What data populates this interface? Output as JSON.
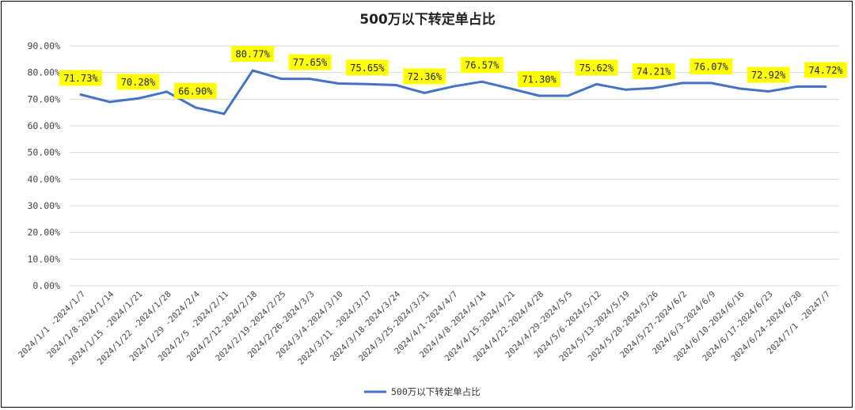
{
  "chart_data": {
    "type": "line",
    "title": "500万以下转定单占比",
    "xlabel": "",
    "ylabel": "",
    "ylim": [
      0,
      90
    ],
    "y_ticks": [
      "0.00%",
      "10.00%",
      "20.00%",
      "30.00%",
      "40.00%",
      "50.00%",
      "60.00%",
      "70.00%",
      "80.00%",
      "90.00%"
    ],
    "grid": true,
    "legend_position": "bottom",
    "line_color": "#4472C4",
    "label_bg_color": "#FFFF00",
    "categories": [
      "2024/1/1 -2024/1/7",
      "2024/1/8-2024/1/14",
      "2024/1/15 -2024/1/21",
      "2024/1/22 -2024/1/28",
      "2024/1/29 -2024/2/4",
      "2024/2/5 -2024/2/11",
      "2024/2/12-2024/2/18",
      "2024/2/19-2024/2/25",
      "2024/2/26-2024/3/3",
      "2024/3/4-2024/3/10",
      "2024/3/11 -2024/3/17",
      "2024/3/18-2024/3/24",
      "2024/3/25-2024/3/31",
      "2024/4/1-2024/4/7",
      "2024/4/8-2024/4/14",
      "2024/4/15-2024/4/21",
      "2024/4/22-2024/4/28",
      "2024/4/29-2024/5/5",
      "2024/5/6-2024/5/12",
      "2024/5/13-2024/5/19",
      "2024/5/20-2024/5/26",
      "2024/5/27-2024/6/2",
      "2024/6/3-2024/6/9",
      "2024/6/10-2024/6/16",
      "2024/6/17-2024/6/23",
      "2024/6/24-2024/6/30",
      "2024/7/1 -20247/7"
    ],
    "series": [
      {
        "name": "500万以下转定单占比",
        "values": [
          71.73,
          69.0,
          70.28,
          72.8,
          66.9,
          64.5,
          80.77,
          77.65,
          77.65,
          75.9,
          75.65,
          75.3,
          72.36,
          74.8,
          76.57,
          74.0,
          71.3,
          71.3,
          75.62,
          73.6,
          74.21,
          76.07,
          76.07,
          74.0,
          72.92,
          74.72,
          74.72
        ]
      }
    ],
    "data_labels": [
      {
        "index": 0,
        "text": "71.73%"
      },
      {
        "index": 2,
        "text": "70.28%"
      },
      {
        "index": 4,
        "text": "66.90%"
      },
      {
        "index": 6,
        "text": "80.77%"
      },
      {
        "index": 8,
        "text": "77.65%"
      },
      {
        "index": 10,
        "text": "75.65%"
      },
      {
        "index": 12,
        "text": "72.36%"
      },
      {
        "index": 14,
        "text": "76.57%"
      },
      {
        "index": 16,
        "text": "71.30%"
      },
      {
        "index": 18,
        "text": "75.62%"
      },
      {
        "index": 20,
        "text": "74.21%"
      },
      {
        "index": 22,
        "text": "76.07%"
      },
      {
        "index": 24,
        "text": "72.92%"
      },
      {
        "index": 26,
        "text": "74.72%"
      }
    ]
  }
}
